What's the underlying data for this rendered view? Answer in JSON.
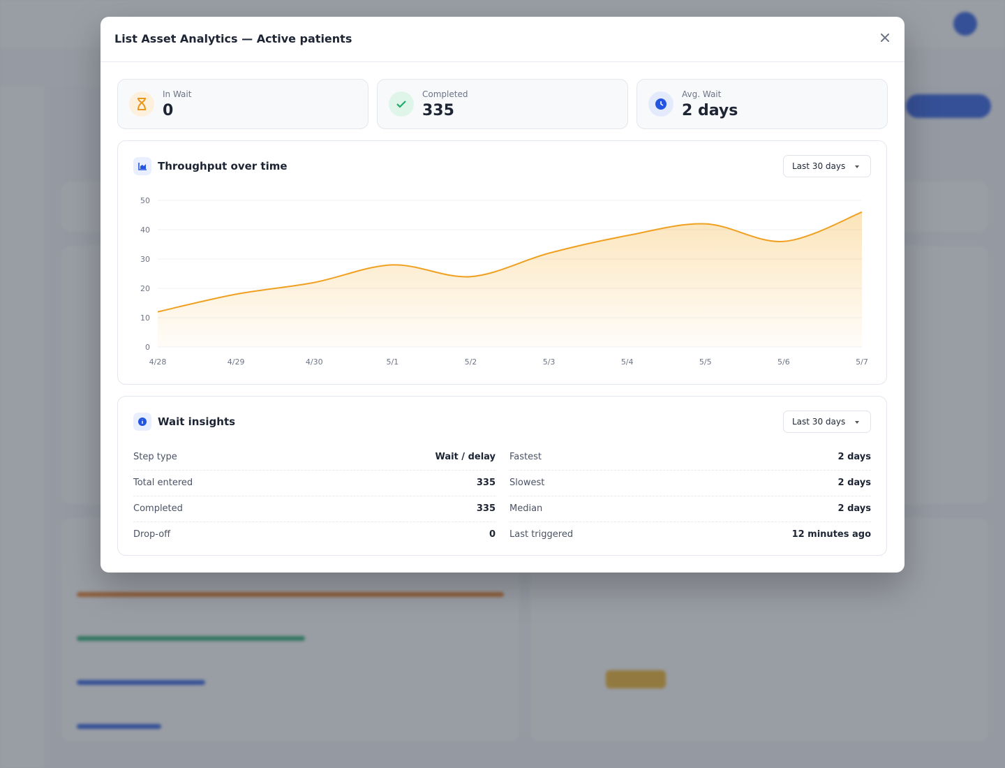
{
  "modal": {
    "title": "List Asset Analytics — Active patients"
  },
  "stats": [
    {
      "label": "In Wait",
      "value": 0
    },
    {
      "label": "Completed",
      "value": 335
    },
    {
      "label": "Avg. Wait",
      "value": "2 days"
    }
  ],
  "chart_data": {
    "type": "line",
    "title": "Throughput over time",
    "dropdown": "Last 30 days",
    "categories": [
      "4/28",
      "4/29",
      "4/30",
      "5/1",
      "5/2",
      "5/3",
      "5/4",
      "5/5",
      "5/6",
      "5/7"
    ],
    "values": [
      12,
      18,
      22,
      28,
      24,
      32,
      38,
      42,
      36,
      46
    ],
    "color": "#f0a020",
    "ylim": [
      0,
      50
    ],
    "yticks": [
      0,
      10,
      20,
      30,
      40,
      50
    ],
    "grid": true,
    "area": true
  },
  "insights": {
    "title": "Wait insights",
    "dropdown": "Last 30 days",
    "left": [
      {
        "label": "Step type",
        "value": "Wait / delay"
      },
      {
        "label": "Total entered",
        "value": 335
      },
      {
        "label": "Completed",
        "value": 335
      },
      {
        "label": "Drop-off",
        "value": 0
      }
    ],
    "right": [
      {
        "label": "Fastest",
        "value": "2 days"
      },
      {
        "label": "Slowest",
        "value": "2 days"
      },
      {
        "label": "Median",
        "value": "2 days"
      },
      {
        "label": "Last triggered",
        "value": "12 minutes ago"
      }
    ]
  }
}
